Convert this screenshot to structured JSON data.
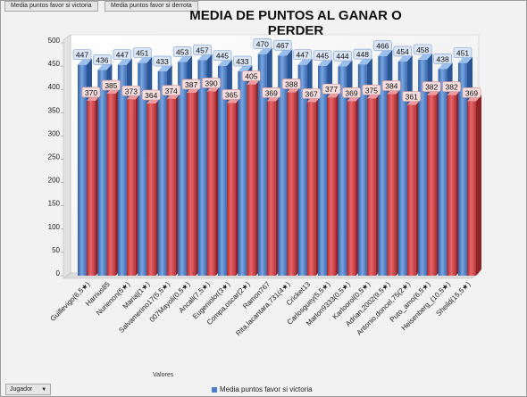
{
  "header": {
    "field_buttons": [
      "Media puntos  favor si victoria",
      "Media puntos  favor si derrota"
    ]
  },
  "footer": {
    "values_label": "Valores",
    "row_field_button": "Jugador",
    "row_field_arrow": "▼",
    "legend_label": "Media puntos favor si victoria"
  },
  "chart_data": {
    "type": "bar",
    "title": "MEDIA DE PUNTOS AL GANAR O PERDER",
    "xlabel": "",
    "ylabel": "",
    "ylim": [
      0,
      500
    ],
    "yticks": [
      0,
      50,
      100,
      150,
      200,
      250,
      300,
      350,
      400,
      450,
      500
    ],
    "grid": false,
    "legend_position": "bottom",
    "categories": [
      "Guillevigo(6,5★)",
      "Harrius85",
      "Nurienon(5★)",
      "Maria|(1★)",
      "Salvamerino17(5,5★)",
      "007Mayoli(0,5★)",
      "Ancali(7,5★)",
      "Eugeniolor(3★)",
      "Compa,oscar(2★)",
      "Ramon767",
      "Rita,lacantara,731(4★)",
      "Cricket13",
      "Carlosguey(5,5★)",
      "Marlon9333(0,5★)",
      "Karloorol(0,5★)",
      "Adrian,2002(9,5★)",
      "Antonio,doncel,75(2★)",
      "Puto_amo(6,5★)",
      "Heisenberg_(10,5★)",
      "Sheild(15,5★)"
    ],
    "series": [
      {
        "name": "Media puntos favor si victoria",
        "color": "#4a7ec8",
        "values": [
          447,
          436,
          447,
          451,
          433,
          453,
          457,
          445,
          433,
          470,
          467,
          447,
          445,
          444,
          448,
          466,
          454,
          458,
          438,
          451
        ]
      },
      {
        "name": "Media puntos  favor si derrota",
        "color": "#d9454a",
        "values": [
          370,
          385,
          373,
          364,
          374,
          387,
          390,
          365,
          405,
          369,
          388,
          367,
          377,
          369,
          375,
          384,
          361,
          382,
          382,
          369
        ]
      }
    ]
  }
}
